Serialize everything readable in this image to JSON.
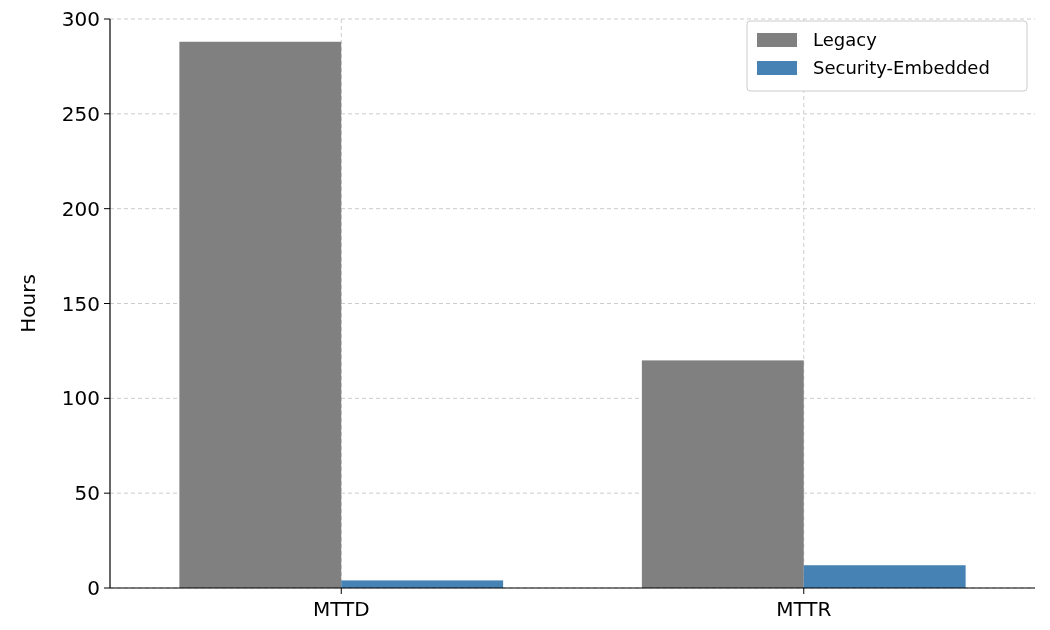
{
  "chart_data": {
    "type": "bar",
    "ylabel": "Hours",
    "categories": [
      "MTTD",
      "MTTR"
    ],
    "series": [
      {
        "name": "Legacy",
        "color": "#808080",
        "values": [
          288,
          120
        ]
      },
      {
        "name": "Security-Embedded",
        "color": "#4682b4",
        "values": [
          4,
          12
        ]
      }
    ],
    "ylim": [
      0,
      300
    ],
    "yticks": [
      0,
      50,
      100,
      150,
      200,
      250,
      300
    ],
    "grid": true,
    "legend": "top right"
  }
}
